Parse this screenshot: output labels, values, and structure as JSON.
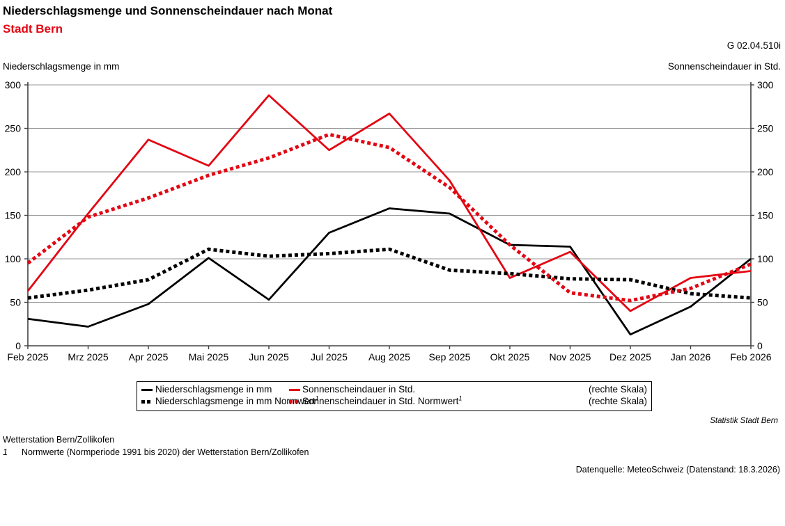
{
  "header": {
    "title": "Niederschlagsmenge und Sonnenscheindauer nach Monat",
    "subtitle": "Stadt Bern",
    "reference": "G 02.04.510i",
    "left_axis_caption": "Niederschlagsmenge in mm",
    "right_axis_caption": "Sonnenscheindauer in Std."
  },
  "chart_data": {
    "type": "line",
    "x": [
      "Feb 2025",
      "Mrz 2025",
      "Apr 2025",
      "Mai 2025",
      "Jun 2025",
      "Jul 2025",
      "Aug 2025",
      "Sep 2025",
      "Okt 2025",
      "Nov 2025",
      "Dez 2025",
      "Jan 2026",
      "Feb 2026"
    ],
    "ylim": [
      0,
      300
    ],
    "ytick_step": 50,
    "grid": true,
    "left_axis_label": "Niederschlagsmenge in mm",
    "right_axis_label": "Sonnenscheindauer in Std.",
    "legend_position": "bottom",
    "series": [
      {
        "name": "Niederschlagsmenge in mm",
        "axis": "left",
        "color": "#000000",
        "style": "solid",
        "values": [
          31,
          22,
          48,
          101,
          53,
          130,
          158,
          152,
          116,
          114,
          13,
          45,
          100
        ]
      },
      {
        "name": "Sonnenscheindauer in Std.",
        "axis": "right",
        "color": "#e30613",
        "style": "solid",
        "values": [
          63,
          152,
          237,
          207,
          288,
          225,
          267,
          190,
          78,
          108,
          40,
          78,
          86
        ]
      },
      {
        "name": "Niederschlagsmenge in mm Normwert",
        "axis": "left",
        "color": "#000000",
        "style": "dotted",
        "values": [
          55,
          64,
          76,
          111,
          103,
          106,
          111,
          87,
          83,
          77,
          76,
          60,
          55
        ]
      },
      {
        "name": "Sonnenscheindauer in Std. Normwert",
        "axis": "right",
        "color": "#e30613",
        "style": "dotted",
        "values": [
          95,
          148,
          170,
          196,
          216,
          243,
          228,
          182,
          116,
          61,
          52,
          66,
          94
        ]
      }
    ]
  },
  "legend": {
    "rows": [
      {
        "col1": "Niederschlagsmenge in mm",
        "col1_sup": "",
        "col2": "Sonnenscheindauer in Std.",
        "col2_sup": "",
        "col3": "(rechte Skala)"
      },
      {
        "col1": "Niederschlagsmenge in mm Normwert",
        "col1_sup": "1",
        "col2": "Sonnenscheindauer in Std. Normwert",
        "col2_sup": "1",
        "col3": "(rechte Skala)"
      }
    ]
  },
  "footer": {
    "attribution": "Statistik Stadt Bern",
    "station_note": "Wetterstation Bern/Zollikofen",
    "footnote_marker": "1",
    "footnote_text": "Normwerte (Normperiode 1991 bis 2020) der Wetterstation Bern/Zollikofen",
    "source": "Datenquelle: MeteoSchweiz (Datenstand: 18.3.2026)"
  },
  "colors": {
    "accent_red": "#e30613",
    "grid": "#969696",
    "axis": "#404040",
    "text": "#000000"
  }
}
